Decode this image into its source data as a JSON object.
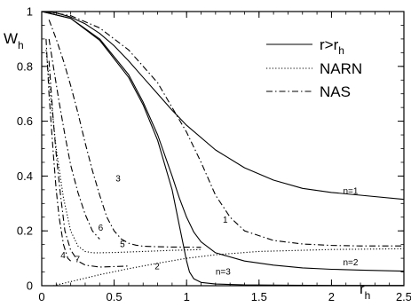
{
  "chart_data": {
    "type": "line",
    "xlabel": "r",
    "xlabel_sub": "h",
    "ylabel": "W",
    "ylabel_sub": "h",
    "xlim": [
      0,
      2.5
    ],
    "ylim": [
      0,
      1
    ],
    "x_ticks": [
      0,
      0.5,
      1,
      1.5,
      2,
      2.5
    ],
    "x_tick_labels": [
      "0",
      "0.5",
      "1",
      "1.5",
      "2",
      "2.5"
    ],
    "y_ticks": [
      0,
      0.2,
      0.4,
      0.6,
      0.8,
      1
    ],
    "y_tick_labels": [
      "0",
      "0.2",
      "0.4",
      "0.6",
      "0.8",
      "1"
    ],
    "legend_position": "top-right",
    "legend": [
      {
        "label": "r>r",
        "sub": "h",
        "style": "solid"
      },
      {
        "label": "NARN",
        "sub": "",
        "style": "dotted"
      },
      {
        "label": "NAS",
        "sub": "",
        "style": "dashdot"
      }
    ],
    "series": [
      {
        "label": "n=1",
        "style": "solid",
        "x": [
          0,
          0.1,
          0.2,
          0.3,
          0.4,
          0.5,
          0.6,
          0.7,
          0.8,
          0.9,
          1.0,
          1.2,
          1.4,
          1.6,
          1.8,
          2.0,
          2.2,
          2.5
        ],
        "y": [
          1.0,
          0.995,
          0.98,
          0.955,
          0.92,
          0.875,
          0.82,
          0.76,
          0.7,
          0.64,
          0.585,
          0.495,
          0.43,
          0.385,
          0.355,
          0.34,
          0.33,
          0.315
        ]
      },
      {
        "label": "n=2",
        "style": "solid",
        "x": [
          0,
          0.2,
          0.4,
          0.6,
          0.7,
          0.8,
          0.9,
          0.95,
          1.0,
          1.05,
          1.1,
          1.2,
          1.4,
          1.6,
          1.8,
          2.0,
          2.2,
          2.5
        ],
        "y": [
          1.0,
          0.975,
          0.9,
          0.77,
          0.67,
          0.55,
          0.4,
          0.32,
          0.25,
          0.195,
          0.16,
          0.12,
          0.09,
          0.075,
          0.065,
          0.06,
          0.057,
          0.053
        ]
      },
      {
        "label": "n=3",
        "style": "solid",
        "x": [
          0,
          0.2,
          0.4,
          0.6,
          0.7,
          0.8,
          0.9,
          0.95,
          1.0,
          1.02,
          1.05,
          1.1,
          1.2,
          1.4,
          1.7,
          2.0,
          2.5
        ],
        "y": [
          1.0,
          0.975,
          0.895,
          0.76,
          0.66,
          0.53,
          0.35,
          0.22,
          0.09,
          0.05,
          0.025,
          0.012,
          0.006,
          0.003,
          0.002,
          0.001,
          0.001
        ]
      },
      {
        "label": "1",
        "style": "dashdot",
        "x": [
          0.02,
          0.2,
          0.4,
          0.6,
          0.8,
          1.0,
          1.1,
          1.2,
          1.3,
          1.4,
          1.6,
          1.8,
          2.0,
          2.2,
          2.5
        ],
        "y": [
          1.0,
          0.985,
          0.94,
          0.86,
          0.74,
          0.56,
          0.45,
          0.33,
          0.25,
          0.2,
          0.165,
          0.152,
          0.147,
          0.145,
          0.145
        ]
      },
      {
        "label": "2",
        "style": "dotted",
        "x": [
          0.08,
          0.2,
          0.4,
          0.6,
          0.8,
          1.0,
          1.2,
          1.5,
          2.0,
          2.5
        ],
        "y": [
          0.0,
          0.015,
          0.04,
          0.062,
          0.082,
          0.1,
          0.113,
          0.125,
          0.132,
          0.135
        ]
      },
      {
        "label": "3",
        "style": "dashdot",
        "x": [
          0.05,
          0.1,
          0.15,
          0.2,
          0.25,
          0.3,
          0.35,
          0.4,
          0.45,
          0.5,
          0.55,
          0.6,
          0.65,
          0.7,
          0.8,
          0.9,
          1.1
        ],
        "y": [
          0.97,
          0.9,
          0.82,
          0.73,
          0.63,
          0.52,
          0.42,
          0.33,
          0.25,
          0.2,
          0.17,
          0.155,
          0.148,
          0.144,
          0.142,
          0.141,
          0.14
        ]
      },
      {
        "label": "4",
        "style": "dashdot",
        "x": [
          0.03,
          0.05,
          0.08,
          0.1,
          0.12,
          0.15,
          0.18,
          0.2
        ],
        "y": [
          0.9,
          0.7,
          0.48,
          0.35,
          0.25,
          0.15,
          0.1,
          0.09
        ]
      },
      {
        "label": "5",
        "style": "dotted",
        "x": [
          0.03,
          0.06,
          0.1,
          0.15,
          0.2,
          0.25,
          0.3,
          0.35,
          0.4,
          0.5,
          0.6,
          0.7,
          0.8,
          0.9,
          1.0,
          1.1
        ],
        "y": [
          0.86,
          0.7,
          0.5,
          0.32,
          0.2,
          0.145,
          0.125,
          0.12,
          0.12,
          0.121,
          0.123,
          0.125,
          0.127,
          0.129,
          0.13,
          0.132
        ]
      },
      {
        "label": "6",
        "style": "dashdot",
        "x": [
          0.05,
          0.08,
          0.12,
          0.16,
          0.2,
          0.25,
          0.3,
          0.35,
          0.4
        ],
        "y": [
          0.9,
          0.8,
          0.67,
          0.55,
          0.44,
          0.34,
          0.26,
          0.2,
          0.17
        ]
      },
      {
        "label": "7",
        "style": "dashdot",
        "x": [
          0.05,
          0.08,
          0.1,
          0.13,
          0.16,
          0.2,
          0.25,
          0.3,
          0.4,
          0.5,
          0.6
        ],
        "y": [
          0.82,
          0.6,
          0.48,
          0.33,
          0.2,
          0.13,
          0.09,
          0.075,
          0.068,
          0.07,
          0.072
        ]
      }
    ],
    "curve_labels": [
      {
        "text": "n=1",
        "x": 2.08,
        "y": 0.335
      },
      {
        "text": "n=2",
        "x": 2.08,
        "y": 0.075
      },
      {
        "text": "n=3",
        "x": 1.2,
        "y": 0.04
      },
      {
        "text": "1",
        "x": 1.25,
        "y": 0.23
      },
      {
        "text": "2",
        "x": 0.78,
        "y": 0.06
      },
      {
        "text": "3",
        "x": 0.51,
        "y": 0.38
      },
      {
        "text": "4",
        "x": 0.13,
        "y": 0.1
      },
      {
        "text": "5",
        "x": 0.54,
        "y": 0.14
      },
      {
        "text": "6",
        "x": 0.39,
        "y": 0.2
      },
      {
        "text": "7",
        "x": 0.23,
        "y": 0.085
      }
    ]
  }
}
